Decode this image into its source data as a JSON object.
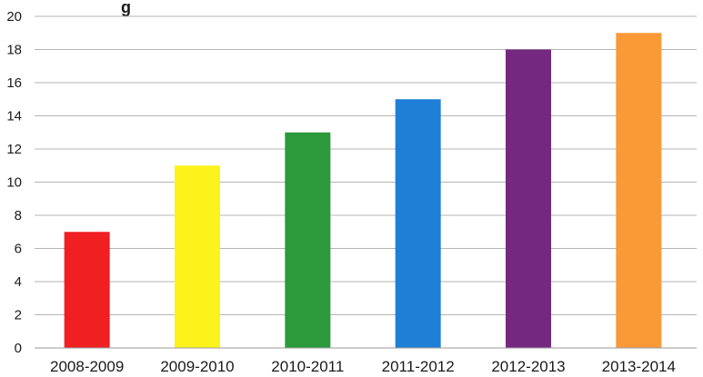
{
  "chart_data": {
    "type": "bar",
    "title": "g",
    "xlabel": "",
    "ylabel": "",
    "categories": [
      "2008-2009",
      "2009-2010",
      "2010-2011",
      "2011-2012",
      "2012-2013",
      "2013-2014"
    ],
    "values": [
      7,
      11,
      13,
      15,
      18,
      19
    ],
    "colors": [
      "#f01f22",
      "#fdf31a",
      "#2a9a3a",
      "#1f7fd6",
      "#74287f",
      "#f99a37"
    ],
    "ylim": [
      0,
      20
    ],
    "yticks": [
      "0",
      "2",
      "4",
      "6",
      "8",
      "10",
      "12",
      "14",
      "16",
      "18",
      "20"
    ],
    "grid": true,
    "gridline_color": "#b5b5b5",
    "legend": "none"
  }
}
